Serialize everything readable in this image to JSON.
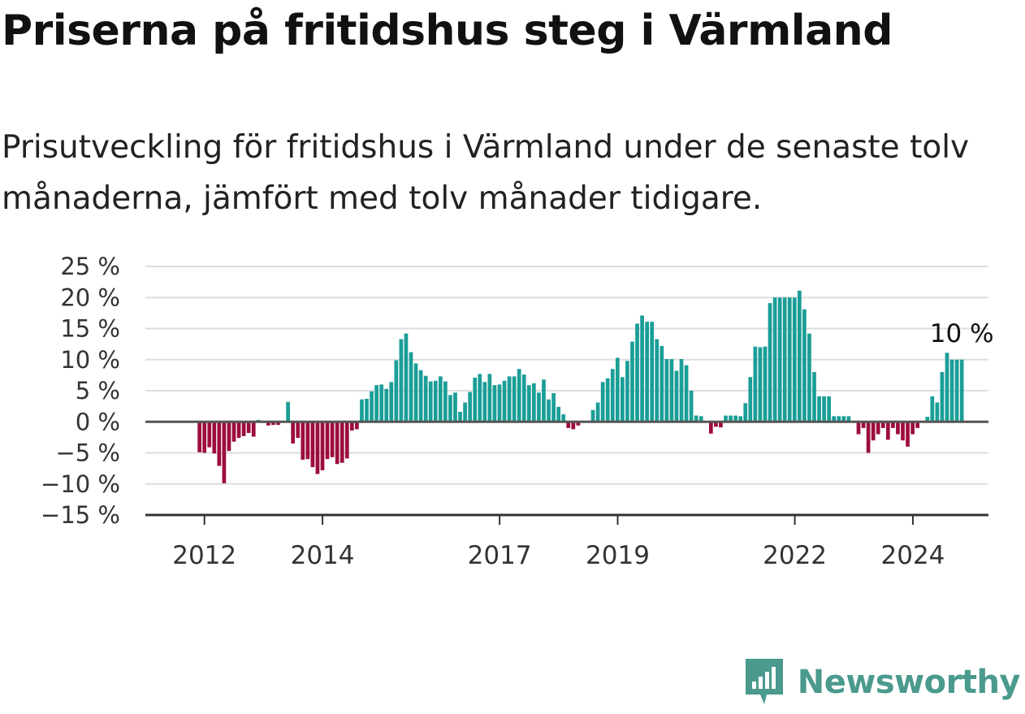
{
  "title": "Priserna på fritidshus steg i Värmland",
  "subtitle": "Prisutveckling för fritidshus i Värmland under de senaste tolv månaderna, jämfört med tolv månader tidigare.",
  "brand": {
    "name": "Newsworthy",
    "icon": "newsworthy-logo-icon",
    "color": "#4a9a8d"
  },
  "colors": {
    "positive": "#1a9e97",
    "negative": "#9c0d3d",
    "grid": "#dddddd",
    "zero": "#555555"
  },
  "chart_data": {
    "type": "bar",
    "ylim": [
      -15,
      25
    ],
    "y_ticks": [
      25,
      20,
      15,
      10,
      5,
      0,
      -5,
      -10,
      -15
    ],
    "y_tick_labels": [
      "25 %",
      "20 %",
      "15 %",
      "10 %",
      "5 %",
      "0 %",
      "−5 %",
      "−10 %",
      "−15 %"
    ],
    "x_ticks": [
      2012,
      2014,
      2017,
      2019,
      2022,
      2024
    ],
    "x_tick_labels": [
      "2012",
      "2014",
      "2017",
      "2019",
      "2022",
      "2024"
    ],
    "x_start": 2011.9167,
    "step": 0.0833,
    "annotation": {
      "text": "10 %",
      "index": 155
    },
    "grid": true,
    "values": [
      -4.9,
      -5,
      -4.1,
      -5.1,
      -7.1,
      -9.9,
      -4.7,
      -3.2,
      -2.6,
      -2.3,
      -1.8,
      -2.4,
      0.3,
      0,
      -0.6,
      -0.5,
      -0.5,
      0,
      3.2,
      -3.5,
      -2.6,
      -6.1,
      -6,
      -7.3,
      -8.4,
      -7.8,
      -6,
      -5.7,
      -6.8,
      -6.6,
      -5.9,
      -1.4,
      -1.2,
      3.6,
      3.7,
      4.9,
      5.9,
      6,
      5.3,
      6.4,
      9.9,
      13.3,
      14.2,
      11.2,
      9.4,
      8.3,
      7.4,
      6.5,
      6.6,
      7.3,
      6.5,
      4.3,
      4.7,
      1.6,
      3.1,
      4.8,
      7.1,
      7.7,
      6.4,
      7.7,
      5.9,
      6,
      6.6,
      7.3,
      7.3,
      8.5,
      7.6,
      5.9,
      6.2,
      4.7,
      6.8,
      3.6,
      4.6,
      2.4,
      1.2,
      -1,
      -1.2,
      -0.6,
      0,
      0,
      1.9,
      3.1,
      6.4,
      7,
      8.5,
      10.3,
      7.2,
      9.8,
      12.9,
      15.8,
      17.1,
      16.1,
      16.1,
      13.3,
      12.2,
      10.1,
      10.1,
      8.2,
      10.1,
      9.1,
      5,
      1,
      0.9,
      0,
      -1.9,
      -0.8,
      -0.9,
      1,
      1,
      1,
      0.9,
      3,
      7.2,
      12.1,
      12,
      12.1,
      19.1,
      20,
      20,
      20,
      20,
      20,
      21.1,
      18.1,
      14.2,
      8,
      4.1,
      4.1,
      4.1,
      0.9,
      0.9,
      0.9,
      0.9,
      0,
      -2,
      -1,
      -5,
      -3,
      -2,
      -1,
      -2.9,
      -1,
      -2,
      -3,
      -4,
      -2,
      -1,
      0,
      0.8,
      4.1,
      3.1,
      8,
      11.1,
      10,
      10,
      10
    ]
  }
}
